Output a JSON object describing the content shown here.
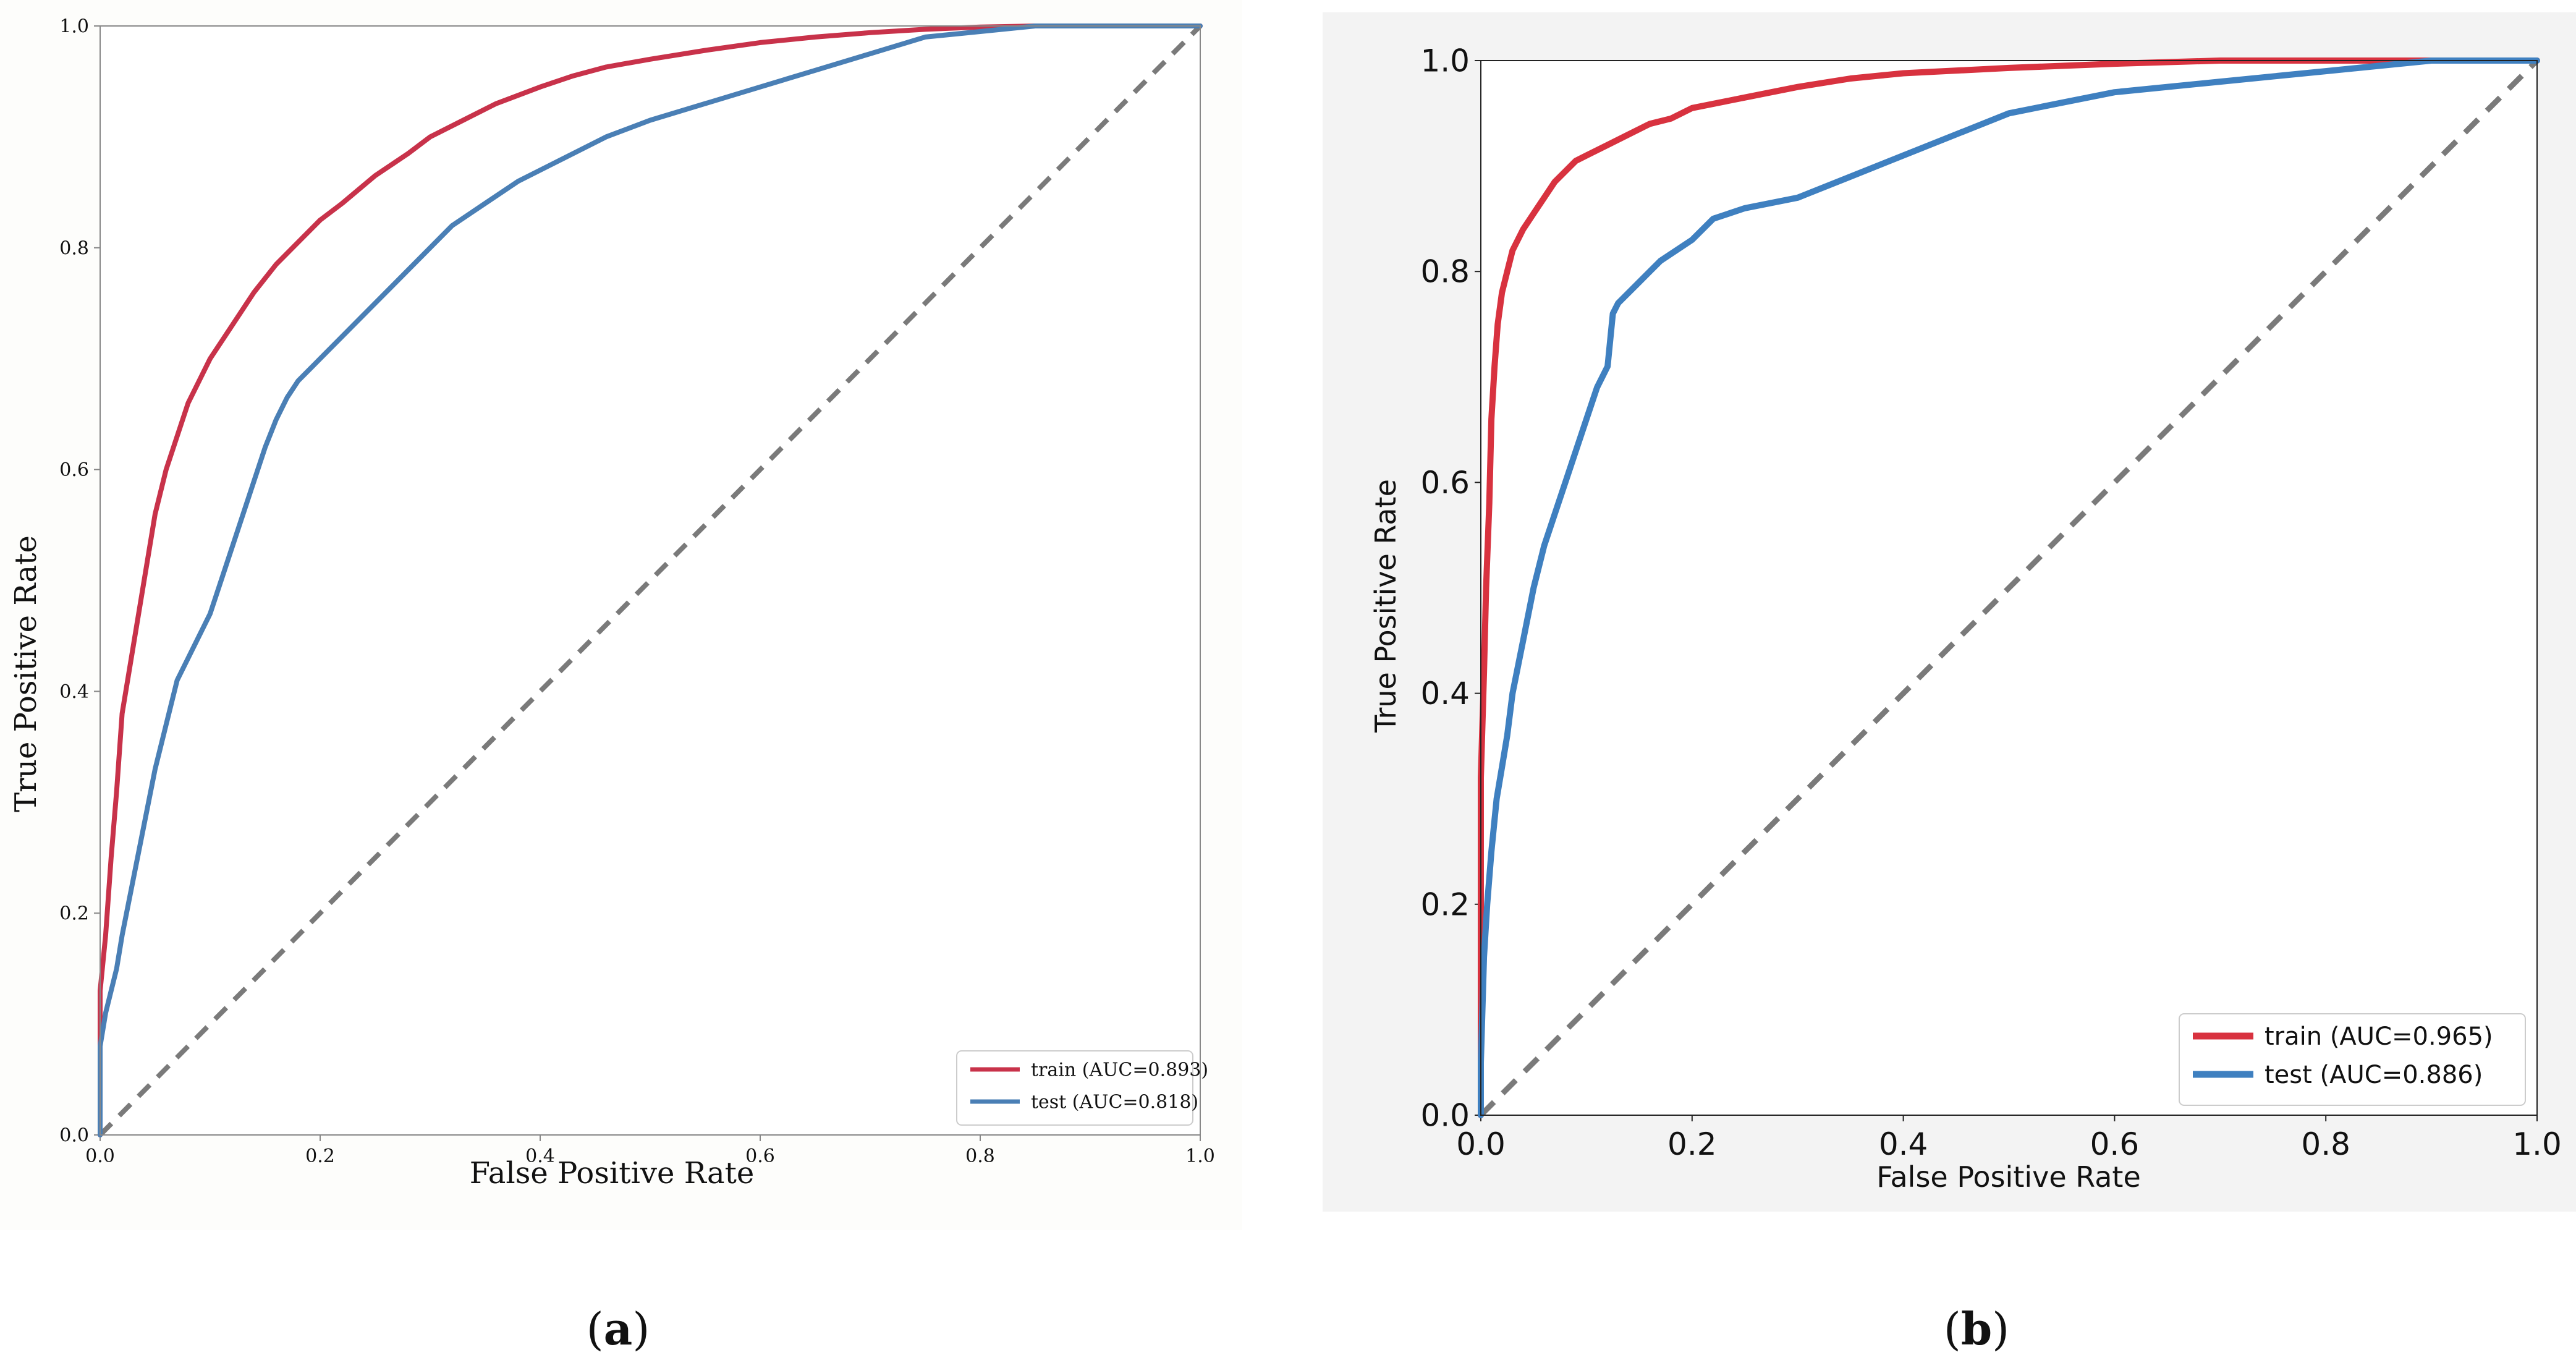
{
  "chart_data": [
    {
      "id": "a",
      "type": "line",
      "panel_label": "a",
      "xlabel": "False Positive Rate",
      "ylabel": "True Positive Rate",
      "xlim": [
        0,
        1
      ],
      "ylim": [
        0,
        1
      ],
      "x_ticks": [
        "0.0",
        "0.2",
        "0.4",
        "0.6",
        "0.8",
        "1.0"
      ],
      "y_ticks": [
        "0.0",
        "0.2",
        "0.4",
        "0.6",
        "0.8",
        "1.0"
      ],
      "grid": false,
      "legend_position": "bottom-right",
      "series": [
        {
          "name": "train",
          "label": "train (AUC=0.893)",
          "color": "#c8324a",
          "x": [
            0.0,
            0.0,
            0.005,
            0.01,
            0.015,
            0.02,
            0.03,
            0.04,
            0.05,
            0.06,
            0.07,
            0.08,
            0.09,
            0.1,
            0.12,
            0.14,
            0.16,
            0.18,
            0.2,
            0.22,
            0.25,
            0.28,
            0.3,
            0.33,
            0.36,
            0.4,
            0.43,
            0.46,
            0.5,
            0.55,
            0.6,
            0.65,
            0.7,
            0.75,
            0.8,
            0.85,
            0.9,
            1.0
          ],
          "y": [
            0.0,
            0.13,
            0.18,
            0.25,
            0.31,
            0.38,
            0.44,
            0.5,
            0.56,
            0.6,
            0.63,
            0.66,
            0.68,
            0.7,
            0.73,
            0.76,
            0.785,
            0.805,
            0.825,
            0.84,
            0.865,
            0.885,
            0.9,
            0.915,
            0.93,
            0.945,
            0.955,
            0.963,
            0.97,
            0.978,
            0.985,
            0.99,
            0.994,
            0.997,
            0.999,
            1.0,
            1.0,
            1.0
          ]
        },
        {
          "name": "test",
          "label": "test (AUC=0.818)",
          "color": "#4a7fb5",
          "x": [
            0.0,
            0.0,
            0.005,
            0.01,
            0.015,
            0.02,
            0.03,
            0.04,
            0.05,
            0.06,
            0.07,
            0.08,
            0.09,
            0.1,
            0.11,
            0.12,
            0.13,
            0.14,
            0.15,
            0.16,
            0.17,
            0.18,
            0.2,
            0.22,
            0.24,
            0.26,
            0.28,
            0.3,
            0.32,
            0.35,
            0.38,
            0.42,
            0.46,
            0.5,
            0.55,
            0.6,
            0.65,
            0.7,
            0.75,
            0.8,
            0.85,
            1.0
          ],
          "y": [
            0.0,
            0.08,
            0.11,
            0.13,
            0.15,
            0.18,
            0.23,
            0.28,
            0.33,
            0.37,
            0.41,
            0.43,
            0.45,
            0.47,
            0.5,
            0.53,
            0.56,
            0.59,
            0.62,
            0.645,
            0.665,
            0.68,
            0.7,
            0.72,
            0.74,
            0.76,
            0.78,
            0.8,
            0.82,
            0.84,
            0.86,
            0.88,
            0.9,
            0.915,
            0.93,
            0.945,
            0.96,
            0.975,
            0.99,
            0.995,
            1.0,
            1.0
          ]
        },
        {
          "name": "chance",
          "label": "",
          "color": "#7a7a7a",
          "x": [
            0,
            1
          ],
          "y": [
            0,
            1
          ]
        }
      ]
    },
    {
      "id": "b",
      "type": "line",
      "panel_label": "b",
      "xlabel": "False Positive Rate",
      "ylabel": "True Positive Rate",
      "xlim": [
        0,
        1
      ],
      "ylim": [
        0,
        1
      ],
      "x_ticks": [
        "0.0",
        "0.2",
        "0.4",
        "0.6",
        "0.8",
        "1.0"
      ],
      "y_ticks": [
        "0.0",
        "0.2",
        "0.4",
        "0.6",
        "0.8",
        "1.0"
      ],
      "grid": false,
      "legend_position": "bottom-right",
      "series": [
        {
          "name": "train",
          "label": "train (AUC=0.965)",
          "color": "#d8323f",
          "x": [
            0.0,
            0.0,
            0.003,
            0.005,
            0.008,
            0.01,
            0.013,
            0.016,
            0.02,
            0.025,
            0.03,
            0.04,
            0.05,
            0.06,
            0.07,
            0.08,
            0.09,
            0.1,
            0.12,
            0.14,
            0.16,
            0.18,
            0.2,
            0.25,
            0.3,
            0.35,
            0.4,
            0.5,
            0.6,
            0.7,
            0.8,
            1.0
          ],
          "y": [
            0.0,
            0.32,
            0.42,
            0.5,
            0.58,
            0.66,
            0.71,
            0.75,
            0.78,
            0.8,
            0.82,
            0.84,
            0.855,
            0.87,
            0.885,
            0.895,
            0.905,
            0.91,
            0.92,
            0.93,
            0.94,
            0.945,
            0.955,
            0.965,
            0.975,
            0.983,
            0.988,
            0.993,
            0.997,
            1.0,
            1.0,
            1.0
          ]
        },
        {
          "name": "test",
          "label": "test (AUC=0.886)",
          "color": "#3f80c0",
          "x": [
            0.0,
            0.0,
            0.003,
            0.006,
            0.01,
            0.015,
            0.02,
            0.025,
            0.03,
            0.04,
            0.05,
            0.06,
            0.07,
            0.08,
            0.09,
            0.1,
            0.11,
            0.12,
            0.125,
            0.13,
            0.15,
            0.17,
            0.2,
            0.22,
            0.25,
            0.3,
            0.35,
            0.4,
            0.45,
            0.5,
            0.55,
            0.6,
            0.7,
            0.8,
            0.9,
            1.0
          ],
          "y": [
            0.0,
            0.05,
            0.15,
            0.2,
            0.25,
            0.3,
            0.33,
            0.36,
            0.4,
            0.45,
            0.5,
            0.54,
            0.57,
            0.6,
            0.63,
            0.66,
            0.69,
            0.71,
            0.76,
            0.77,
            0.79,
            0.81,
            0.83,
            0.85,
            0.86,
            0.87,
            0.89,
            0.91,
            0.93,
            0.95,
            0.96,
            0.97,
            0.98,
            0.99,
            1.0,
            1.0
          ]
        },
        {
          "name": "chance",
          "label": "",
          "color": "#7a7a7a",
          "x": [
            0,
            1
          ],
          "y": [
            0,
            1
          ]
        }
      ]
    }
  ],
  "captions": {
    "a": "a",
    "b": "b"
  },
  "colors": {
    "page_bg": "#ffffff",
    "panel_a_bg": "#fdfdfb",
    "panel_b_bg": "#f3f3f3",
    "axis": "#333333",
    "text": "#111111"
  }
}
